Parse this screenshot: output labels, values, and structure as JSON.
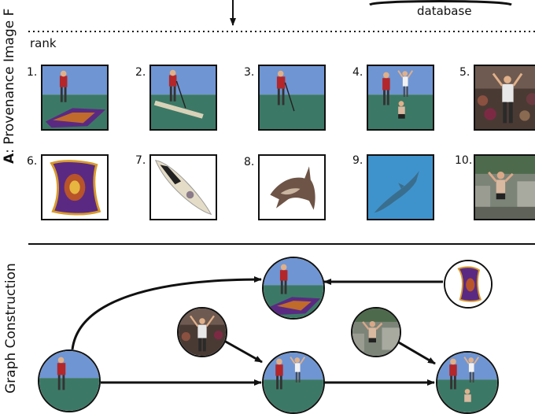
{
  "section_a": {
    "letter": "A",
    "title": ": Provenance Image F",
    "database_label": "database",
    "rank_label": "rank"
  },
  "ranked_results": [
    {
      "rank": "1.",
      "icon": "man-on-carpet-image"
    },
    {
      "rank": "2.",
      "icon": "man-on-paddleboard-image"
    },
    {
      "rank": "3.",
      "icon": "man-with-paddle-image"
    },
    {
      "rank": "4.",
      "icon": "man-with-dancers-image"
    },
    {
      "rank": "5.",
      "icon": "dancing-crowd-image"
    },
    {
      "rank": "6.",
      "icon": "flying-carpet-image"
    },
    {
      "rank": "7.",
      "icon": "paddleboard-image"
    },
    {
      "rank": "8.",
      "icon": "shark-image"
    },
    {
      "rank": "9.",
      "icon": "underwater-shark-image"
    },
    {
      "rank": "10.",
      "icon": "man-on-rocks-image"
    }
  ],
  "section_b": {
    "title": "Graph Construction"
  },
  "graph_nodes": [
    {
      "id": "root",
      "icon": "man-with-paddle-image"
    },
    {
      "id": "carpet-composite",
      "icon": "man-on-carpet-image"
    },
    {
      "id": "carpet-donor",
      "icon": "flying-carpet-image"
    },
    {
      "id": "dancer-donor",
      "icon": "dancing-crowd-image"
    },
    {
      "id": "rocks-donor",
      "icon": "man-on-rocks-image"
    },
    {
      "id": "dancer-composite",
      "icon": "man-with-dancers-image"
    },
    {
      "id": "final-composite",
      "icon": "man-with-dancers-image"
    }
  ],
  "colors": {
    "sky": "#5b86c9",
    "water": "#3d7a66",
    "shirt": "#b3262a",
    "carpet": "#5a2a82",
    "arrow": "#111111"
  }
}
